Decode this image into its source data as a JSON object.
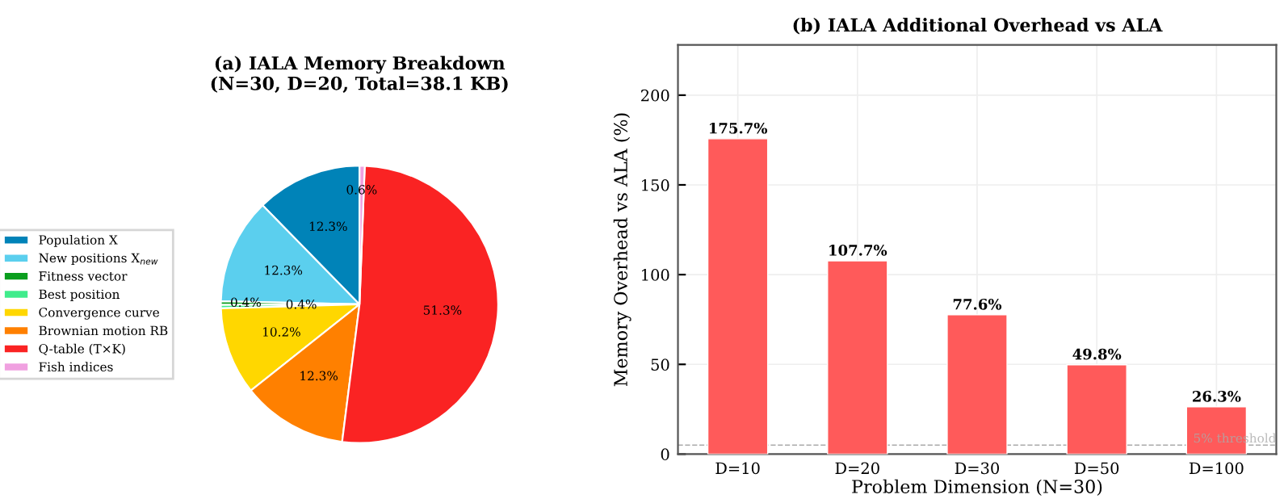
{
  "chart_data": [
    {
      "type": "pie",
      "title": "(a) IALA Memory Breakdown\n(N=30, D=20, Total=38.1 KB)",
      "categories": [
        "Population X",
        "New positions X$_{new}$",
        "Fitness vector",
        "Best position",
        "Convergence curve",
        "Brownian motion RB",
        "Q-table (T×K)",
        "Fish indices"
      ],
      "values": [
        12.3,
        12.3,
        0.4,
        0.4,
        10.2,
        12.3,
        51.3,
        0.6
      ],
      "colors": [
        "#0083b8",
        "#5bcfee",
        "#0a9e1e",
        "#40ec8c",
        "#ffd700",
        "#ff8000",
        "#fa2323",
        "#f0a0e0"
      ],
      "value_labels": [
        "12.3%",
        "12.3%",
        "0.4%",
        "0.4%",
        "10.2%",
        "12.3%",
        "51.3%",
        "0.6%"
      ],
      "legend": "left"
    },
    {
      "type": "bar",
      "title": "(b) IALA Additional Overhead vs ALA",
      "xlabel": "Problem Dimension (N=30)",
      "ylabel": "Memory Overhead vs ALA (%)",
      "categories": [
        "D=10",
        "D=20",
        "D=30",
        "D=50",
        "D=100"
      ],
      "values": [
        175.7,
        107.7,
        77.6,
        49.8,
        26.3
      ],
      "color": "#ff5a5a",
      "value_labels": [
        "175.7%",
        "107.7%",
        "77.6%",
        "49.8%",
        "26.3%"
      ],
      "ylim": [
        0,
        228
      ],
      "yticks": [
        0,
        50,
        100,
        150,
        200
      ],
      "grid": true,
      "ref_lines": [
        {
          "axis": "y",
          "value": 5,
          "label": "5% threshold",
          "color": "#aaaaaa",
          "line_style": "dashed"
        }
      ]
    }
  ]
}
